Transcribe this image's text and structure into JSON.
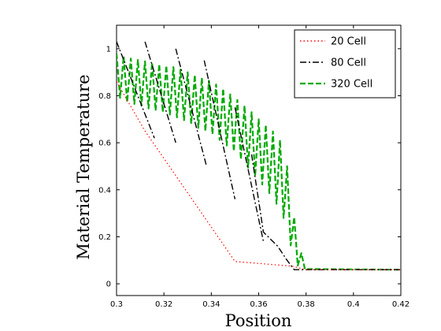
{
  "chart_data": {
    "type": "line",
    "title": "",
    "xlabel": "Position",
    "ylabel": "Material Temperature",
    "xlim": [
      0.3,
      0.42
    ],
    "ylim": [
      -0.05,
      1.1
    ],
    "xticks": [
      0.3,
      0.32,
      0.34,
      0.36,
      0.38,
      0.4,
      0.42
    ],
    "xtick_labels": [
      "0.3",
      "0.32",
      "0.34",
      "0.36",
      "0.38",
      "0.4",
      "0.42"
    ],
    "yticks": [
      0,
      0.2,
      0.4,
      0.6,
      0.8,
      1
    ],
    "ytick_labels": [
      "0",
      "0.2",
      "0.4",
      "0.6",
      "0.8",
      "1"
    ],
    "grid": false,
    "legend_position": "top-right",
    "series": [
      {
        "name": "20  Cell",
        "color": "#ff0000",
        "style": "dotted",
        "x": [
          0.3,
          0.312,
          0.35,
          0.374,
          0.38,
          0.42
        ],
        "y": [
          0.86,
          0.65,
          0.095,
          0.075,
          0.06,
          0.06
        ]
      },
      {
        "name": "80  Cell",
        "color": "#000000",
        "style": "dashdot",
        "segments": [
          {
            "x": [
              0.3,
              0.316
            ],
            "y": [
              1.03,
              0.62
            ]
          },
          {
            "x": [
              0.312,
              0.325
            ],
            "y": [
              1.03,
              0.6
            ]
          },
          {
            "x": [
              0.325,
              0.338
            ],
            "y": [
              1.0,
              0.5
            ]
          },
          {
            "x": [
              0.337,
              0.35
            ],
            "y": [
              0.95,
              0.36
            ]
          },
          {
            "x": [
              0.35,
              0.362
            ],
            "y": [
              0.75,
              0.18
            ]
          },
          {
            "x": [
              0.357,
              0.362,
              0.368,
              0.372,
              0.375,
              0.38,
              0.42
            ],
            "y": [
              0.55,
              0.22,
              0.16,
              0.1,
              0.06,
              0.06,
              0.06
            ]
          }
        ]
      },
      {
        "name": "320 Cell",
        "color": "#00aa00",
        "style": "dashed",
        "x": [
          0.3,
          0.305,
          0.31,
          0.315,
          0.32,
          0.325,
          0.33,
          0.335,
          0.34,
          0.345,
          0.35,
          0.355,
          0.36,
          0.365,
          0.37,
          0.373,
          0.376,
          0.38,
          0.42
        ],
        "y_upper": [
          0.98,
          0.96,
          0.95,
          0.94,
          0.93,
          0.92,
          0.9,
          0.88,
          0.86,
          0.83,
          0.79,
          0.75,
          0.7,
          0.66,
          0.6,
          0.45,
          0.2,
          0.06,
          0.06
        ],
        "y_lower": [
          0.8,
          0.77,
          0.76,
          0.74,
          0.73,
          0.71,
          0.69,
          0.66,
          0.64,
          0.6,
          0.56,
          0.5,
          0.44,
          0.38,
          0.3,
          0.18,
          0.08,
          0.06,
          0.06
        ]
      }
    ]
  }
}
